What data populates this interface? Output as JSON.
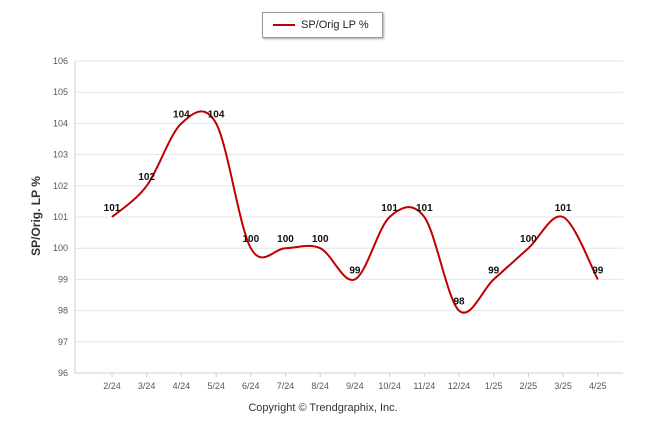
{
  "chart_data": {
    "type": "line",
    "categories": [
      "2/24",
      "3/24",
      "4/24",
      "5/24",
      "6/24",
      "7/24",
      "8/24",
      "9/24",
      "10/24",
      "11/24",
      "12/24",
      "1/25",
      "2/25",
      "3/25",
      "4/25"
    ],
    "series": [
      {
        "name": "SP/Orig LP %",
        "values": [
          101,
          102,
          104,
          104,
          100,
          100,
          100,
          99,
          101,
          101,
          98,
          99,
          100,
          101,
          99
        ],
        "color": "#c00000"
      }
    ],
    "ylabel": "SP/Orig. LP %",
    "xlabel": "",
    "ylim": [
      96,
      106
    ],
    "yticks": [
      96,
      97,
      98,
      99,
      100,
      101,
      102,
      103,
      104,
      105,
      106
    ],
    "grid": true,
    "legend": "top-center",
    "data_labels": true
  },
  "footer": {
    "copyright": "Copyright © Trendgraphix, Inc."
  }
}
